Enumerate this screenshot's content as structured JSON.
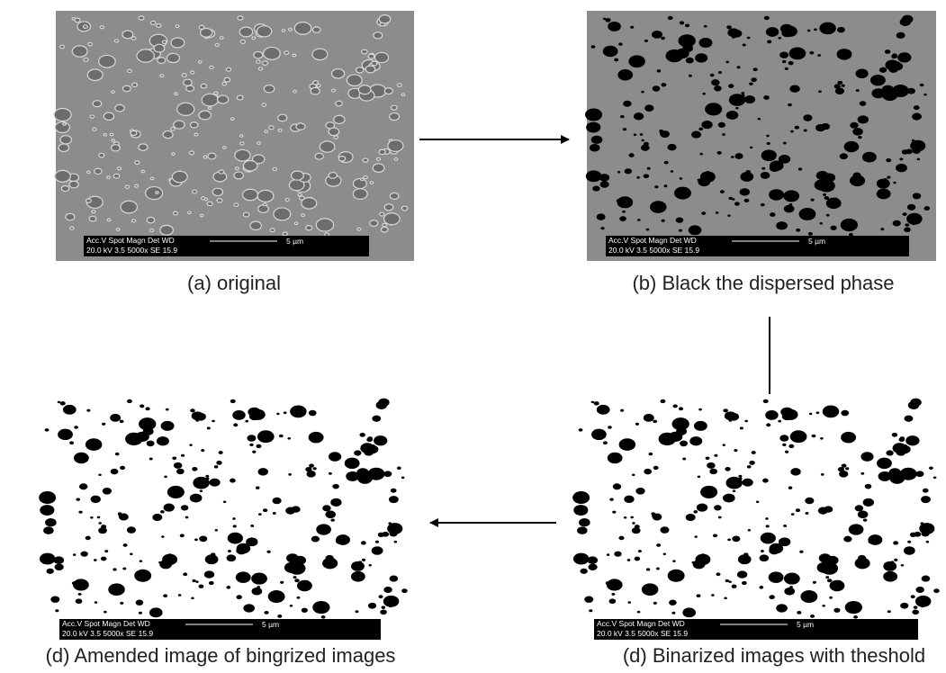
{
  "panels": [
    {
      "caption": "(a) original",
      "info": {
        "labels": "Acc.V  Spot Magn   Det  WD",
        "values": "20.0 kV 3.5   5000x   SE   15.9",
        "scale": "5 µm"
      }
    },
    {
      "caption": "(b) Black the dispersed phase",
      "info": {
        "labels": "Acc.V  Spot Magn   Det  WD",
        "values": "20.0 kV 3.5   5000x   SE   15.9",
        "scale": "5 µm"
      }
    },
    {
      "caption": "(d) Amended image of bingrized images",
      "info": {
        "labels": "Acc.V  Spot Magn   Det  WD",
        "values": "20.0 kV 3.5   5000x   SE   15.9",
        "scale": "5 µm"
      }
    },
    {
      "caption": "(d) Binarized images with theshold",
      "info": {
        "labels": "Acc.V  Spot Magn   Det  WD",
        "values": "20.0 kV 3.5   5000x   SE   15.9",
        "scale": "5 µm"
      }
    }
  ]
}
